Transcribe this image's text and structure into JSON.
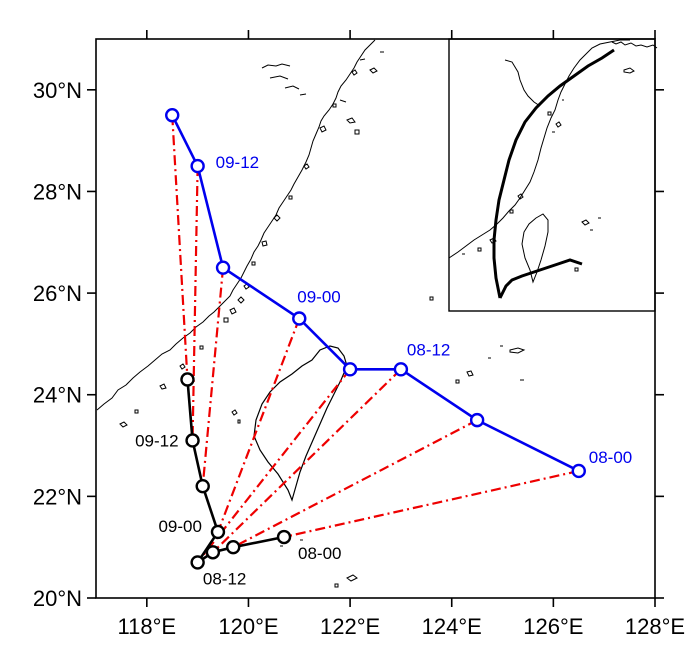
{
  "chart_data": {
    "type": "line",
    "title": "",
    "xlabel": "",
    "ylabel": "",
    "xlim": [
      117,
      128
    ],
    "ylim": [
      20,
      31
    ],
    "x_ticks": [
      118,
      120,
      122,
      124,
      126,
      128
    ],
    "x_tick_labels": [
      "118°E",
      "120°E",
      "122°E",
      "124°E",
      "126°E",
      "128°E"
    ],
    "y_ticks": [
      20,
      22,
      24,
      26,
      28,
      30
    ],
    "y_tick_labels": [
      "20°N",
      "22°N",
      "24°N",
      "26°N",
      "28°N",
      "30°N"
    ],
    "grid": false,
    "colors": {
      "forecast_track": "#0000ee",
      "observed_track": "#000000",
      "connector": "#ee0000",
      "coastline": "#000000"
    },
    "series": [
      {
        "color": "#0000ee",
        "points": [
          {
            "x": 126.5,
            "y": 22.5
          },
          {
            "x": 124.5,
            "y": 23.5
          },
          {
            "x": 123.0,
            "y": 24.5
          },
          {
            "x": 122.0,
            "y": 24.5
          },
          {
            "x": 121.0,
            "y": 25.5
          },
          {
            "x": 119.5,
            "y": 26.5
          },
          {
            "x": 119.0,
            "y": 28.5
          },
          {
            "x": 118.5,
            "y": 29.5
          }
        ]
      },
      {
        "color": "#000000",
        "points": [
          {
            "x": 120.7,
            "y": 21.2
          },
          {
            "x": 119.7,
            "y": 21.0
          },
          {
            "x": 119.3,
            "y": 20.9
          },
          {
            "x": 119.0,
            "y": 20.7
          },
          {
            "x": 119.4,
            "y": 21.3
          },
          {
            "x": 119.1,
            "y": 22.2
          },
          {
            "x": 118.9,
            "y": 23.1
          },
          {
            "x": 118.8,
            "y": 24.3
          }
        ]
      }
    ],
    "connectors": [
      {
        "from": 0,
        "to": 0
      },
      {
        "from": 1,
        "to": 1
      },
      {
        "from": 2,
        "to": 2
      },
      {
        "from": 3,
        "to": 3
      },
      {
        "from": 4,
        "to": 4
      },
      {
        "from": 5,
        "to": 5
      },
      {
        "from": 6,
        "to": 6
      },
      {
        "from": 7,
        "to": 7
      }
    ],
    "annotations": [
      {
        "text": "08-00",
        "series": 0,
        "x": 126.5,
        "y": 22.5,
        "color": "#0000ee"
      },
      {
        "text": "08-12",
        "series": 0,
        "x": 123.0,
        "y": 24.5,
        "color": "#0000ee"
      },
      {
        "text": "09-00",
        "series": 0,
        "x": 121.0,
        "y": 25.5,
        "color": "#0000ee"
      },
      {
        "text": "09-12",
        "series": 0,
        "x": 119.0,
        "y": 28.5,
        "color": "#0000ee"
      },
      {
        "text": "08-00",
        "series": 1,
        "x": 120.7,
        "y": 21.2,
        "color": "#000000"
      },
      {
        "text": "08-12",
        "series": 1,
        "x": 119.3,
        "y": 20.9,
        "color": "#000000"
      },
      {
        "text": "09-00",
        "series": 1,
        "x": 119.4,
        "y": 21.3,
        "color": "#000000"
      },
      {
        "text": "09-12",
        "series": 1,
        "x": 118.9,
        "y": 23.1,
        "color": "#000000"
      }
    ]
  }
}
